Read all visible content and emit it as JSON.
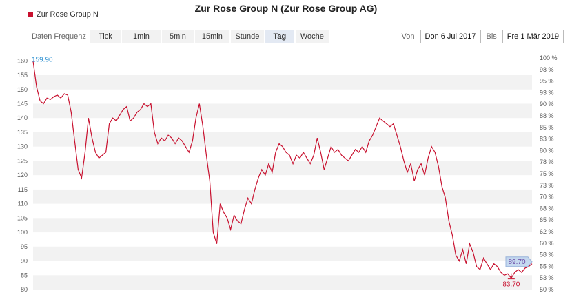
{
  "title": "Zur Rose Group N (Zur Rose Group AG)",
  "legend_label": "Zur Rose Group N",
  "toolbar": {
    "label": "Daten Frequenz",
    "buttons": [
      "Tick",
      "1min",
      "5min",
      "15min",
      "Stunde",
      "Tag",
      "Woche"
    ],
    "active": "Tag"
  },
  "range": {
    "from_label": "Von",
    "from_value": "Don 6 Jul 2017",
    "to_label": "Bis",
    "to_value": "Fre 1 Mär 2019"
  },
  "colors": {
    "series": "#c8102e",
    "band": "#f2f2f2",
    "max_label": "#2b8fd0",
    "last_label": "#6a4aa5",
    "last_fill": "#bcd3ee"
  },
  "chart_data": {
    "type": "line",
    "series": [
      {
        "name": "Zur Rose Group N",
        "values": [
          159.9,
          151,
          146,
          145,
          147,
          146.5,
          147.5,
          148,
          147,
          148.5,
          148,
          142,
          132,
          122,
          119,
          128,
          140,
          133,
          128,
          126,
          127,
          128,
          138,
          140,
          139,
          141,
          143,
          144,
          139,
          140,
          142,
          143,
          145,
          144,
          145,
          135,
          131,
          133,
          132,
          134,
          133,
          131,
          133,
          132,
          130,
          128,
          132,
          140,
          145,
          137,
          127,
          118,
          100,
          96,
          110,
          107,
          105,
          101,
          106,
          104,
          103,
          108,
          112,
          110,
          115,
          119,
          122,
          120,
          124,
          121,
          128,
          131,
          130,
          128,
          127,
          124,
          127,
          126,
          128,
          126,
          124,
          127,
          133,
          128,
          122,
          126,
          130,
          128,
          129,
          127,
          126,
          125,
          127,
          129,
          128,
          130,
          128,
          132,
          134,
          137,
          140,
          139,
          138,
          137,
          138,
          134,
          130,
          125,
          121,
          124,
          118,
          122,
          124,
          120,
          126,
          130,
          128,
          123,
          116,
          112,
          104,
          99,
          92,
          90,
          94,
          89,
          96,
          93,
          88,
          87,
          91,
          89,
          87,
          89,
          88,
          86,
          85,
          85.5,
          84,
          86,
          87,
          86,
          87.5,
          88,
          89
        ]
      }
    ],
    "y_range": [
      80,
      162
    ],
    "y_ticks": [
      80,
      85,
      90,
      95,
      100,
      105,
      110,
      115,
      120,
      125,
      130,
      135,
      140,
      145,
      150,
      155,
      160
    ],
    "y_tick_labels": [
      "80",
      "85",
      "90",
      "95",
      "100",
      "105",
      "110",
      "115",
      "120",
      "125",
      "130",
      "135",
      "140",
      "145",
      "150",
      "155",
      "160"
    ],
    "y2_ticks": [
      "50 %",
      "53 %",
      "55 %",
      "58 %",
      "60 %",
      "62 %",
      "65 %",
      "68 %",
      "70 %",
      "73 %",
      "75 %",
      "78 %",
      "80 %",
      "83 %",
      "85 %",
      "88 %",
      "90 %",
      "93 %",
      "95 %",
      "98 %",
      "100 %"
    ],
    "max_label": "159.90",
    "min_label": "83.70",
    "min_value": 83.7,
    "last_label": "89.70",
    "last_value": 89.7,
    "bands": true,
    "legend": "top-left"
  }
}
